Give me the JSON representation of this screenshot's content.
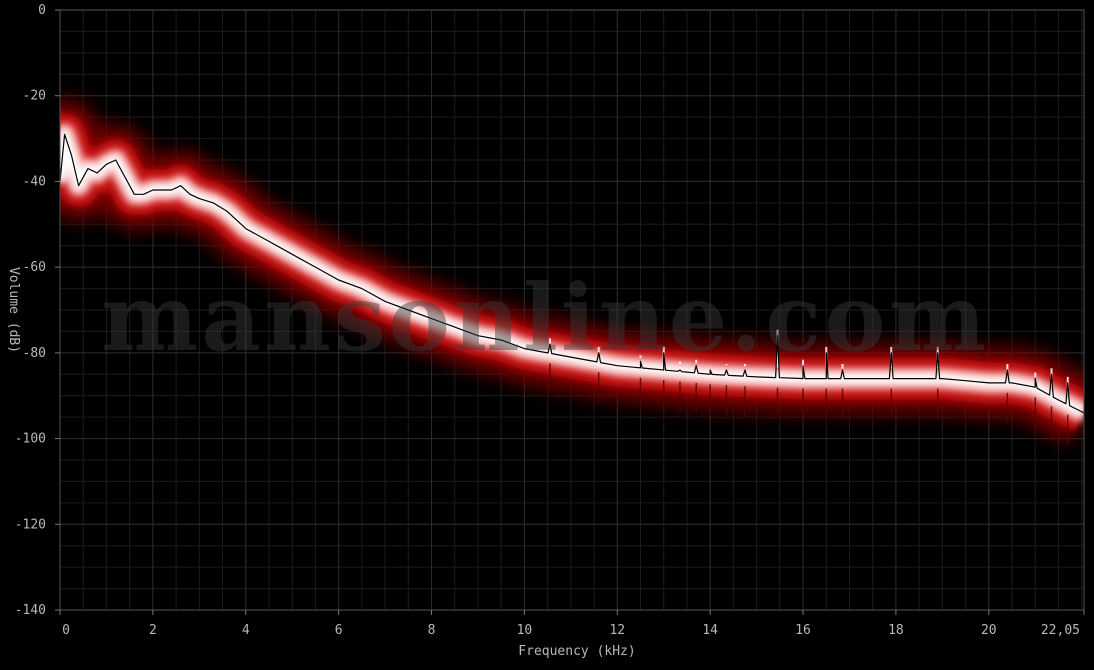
{
  "chart_data": {
    "type": "area",
    "title": "",
    "xlabel": "Frequency (kHz)",
    "ylabel": "Volume (dB)",
    "xlim": [
      0,
      22.05
    ],
    "ylim": [
      -140,
      0
    ],
    "x_ticks": [
      {
        "value": 0,
        "label": "0"
      },
      {
        "value": 2,
        "label": "2"
      },
      {
        "value": 4,
        "label": "4"
      },
      {
        "value": 6,
        "label": "6"
      },
      {
        "value": 8,
        "label": "8"
      },
      {
        "value": 10,
        "label": "10"
      },
      {
        "value": 12,
        "label": "12"
      },
      {
        "value": 14,
        "label": "14"
      },
      {
        "value": 16,
        "label": "16"
      },
      {
        "value": 18,
        "label": "18"
      },
      {
        "value": 20,
        "label": "20"
      },
      {
        "value": 22.05,
        "label": "22,05"
      }
    ],
    "y_ticks": [
      {
        "value": 0,
        "label": "0"
      },
      {
        "value": -20,
        "label": "-20"
      },
      {
        "value": -40,
        "label": "-40"
      },
      {
        "value": -60,
        "label": "-60"
      },
      {
        "value": -80,
        "label": "-80"
      },
      {
        "value": -100,
        "label": "-100"
      },
      {
        "value": -120,
        "label": "-120"
      },
      {
        "value": -140,
        "label": "-140"
      }
    ],
    "grid": true,
    "series": [
      {
        "x": [
          0,
          0.1,
          0.25,
          0.4,
          0.6,
          0.8,
          1.0,
          1.2,
          1.4,
          1.6,
          1.8,
          2.0,
          2.2,
          2.4,
          2.6,
          2.8,
          3.0,
          3.3,
          3.6,
          4.0,
          4.5,
          5.0,
          5.5,
          6.0,
          6.5,
          7.0,
          7.5,
          8.0,
          8.5,
          9.0,
          9.5,
          10.0,
          10.5,
          11.0,
          11.5,
          12.0,
          12.5,
          13.0,
          13.5,
          14.0,
          14.5,
          15.0,
          15.5,
          16.0,
          16.5,
          17.0,
          17.5,
          18.0,
          18.5,
          19.0,
          19.5,
          20.0,
          20.5,
          21.0,
          21.5,
          22.05
        ],
        "values": [
          -40,
          -29,
          -34,
          -41,
          -37,
          -38,
          -36,
          -35,
          -39,
          -43,
          -43,
          -42,
          -42,
          -42,
          -41,
          -43,
          -44,
          -45,
          -47,
          -51,
          -54,
          -57,
          -60,
          -63,
          -65,
          -68,
          -70,
          -72,
          -74,
          -76,
          -77,
          -79,
          -80,
          -81,
          -82,
          -83,
          -83.5,
          -84,
          -84.5,
          -85,
          -85.3,
          -85.6,
          -85.8,
          -86,
          -86,
          -86,
          -86,
          -86,
          -86,
          -86,
          -86.5,
          -87,
          -87,
          -88,
          -91,
          -94
        ]
      }
    ],
    "spikes": [
      {
        "x": 10.55,
        "y": -78
      },
      {
        "x": 11.6,
        "y": -80
      },
      {
        "x": 12.5,
        "y": -82
      },
      {
        "x": 13.0,
        "y": -80
      },
      {
        "x": 13.35,
        "y": -84
      },
      {
        "x": 13.7,
        "y": -83
      },
      {
        "x": 14.0,
        "y": -84
      },
      {
        "x": 14.35,
        "y": -84
      },
      {
        "x": 14.75,
        "y": -84
      },
      {
        "x": 15.45,
        "y": -76
      },
      {
        "x": 16.0,
        "y": -83
      },
      {
        "x": 16.5,
        "y": -80
      },
      {
        "x": 16.85,
        "y": -84
      },
      {
        "x": 17.9,
        "y": -80
      },
      {
        "x": 18.9,
        "y": -80
      },
      {
        "x": 20.4,
        "y": -84
      },
      {
        "x": 21.0,
        "y": -86
      },
      {
        "x": 21.35,
        "y": -85
      },
      {
        "x": 21.7,
        "y": -87
      }
    ],
    "colors": {
      "background": "#000000",
      "grid": "#2a2a2a",
      "band": "#c40a0a",
      "core": "#ffffff",
      "line": "#000000"
    }
  },
  "watermark": "mansonline.com"
}
